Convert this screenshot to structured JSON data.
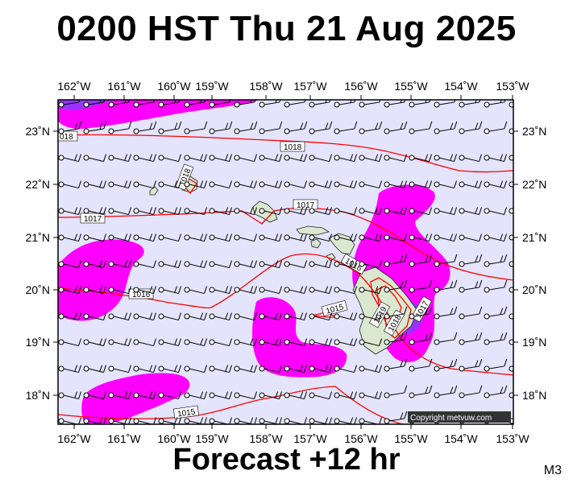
{
  "header": {
    "title": "0200 HST Thu 21 Aug 2025"
  },
  "footer": {
    "forecast": "Forecast +12 hr",
    "code": "M3"
  },
  "credit": "Copyright metvuw.com",
  "axes": {
    "lon_labels": [
      "162˚W",
      "161˚W",
      "160˚W",
      "159˚W",
      "158˚W",
      "157˚W",
      "156˚W",
      "155˚W",
      "154˚W",
      "153˚W"
    ],
    "lat_labels": [
      "23˚N",
      "22˚N",
      "21˚N",
      "20˚N",
      "19˚N",
      "18˚N"
    ]
  },
  "isobars": [
    {
      "value": "1018",
      "label": "1018"
    },
    {
      "value": "1017",
      "label": "1017"
    },
    {
      "value": "1016",
      "label": "1016"
    },
    {
      "value": "1015",
      "label": "1015"
    }
  ],
  "colors": {
    "ocean": "#e4e4fc",
    "precip_light": "#ff00ff",
    "precip_heavy": "#9933ff",
    "isobar": "#ff0000",
    "land": "#d9e8cf",
    "credit_bg": "#333333"
  }
}
